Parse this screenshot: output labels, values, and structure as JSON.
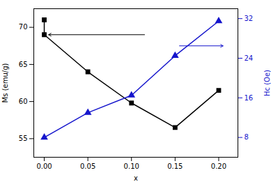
{
  "chart_data": {
    "type": "line",
    "xlabel": "x",
    "ylabel": "Ms (emu/g)",
    "y2label": "Hc (Oe)",
    "xlim": [
      -0.012,
      0.222
    ],
    "xticks": [
      {
        "value": 0.0,
        "label": "0.00"
      },
      0.05,
      {
        "value": 0.1,
        "label": "0.10"
      },
      0.15,
      {
        "value": 0.2,
        "label": "0.20"
      }
    ],
    "ylim": [
      52.5,
      72.5
    ],
    "yticks": [
      55,
      60,
      65,
      70
    ],
    "y2lim": [
      4.0,
      34.0
    ],
    "y2ticks": [
      8,
      16,
      24,
      32
    ],
    "y2color": "#1515cc",
    "series": [
      {
        "name": "Ms (emu/g)",
        "axis": "y",
        "color": "#000000",
        "marker": "square",
        "x": [
          0.0,
          0.0,
          0.05,
          0.1,
          0.15,
          0.2
        ],
        "values": [
          71.0,
          69.0,
          64.0,
          59.8,
          56.5,
          61.5
        ]
      },
      {
        "name": "Hc (Oe)",
        "axis": "y2",
        "color": "#1515cc",
        "marker": "triangle",
        "x": [
          0.0,
          0.05,
          0.1,
          0.15,
          0.2
        ],
        "values": [
          8.0,
          13.0,
          16.5,
          24.5,
          31.5
        ]
      }
    ],
    "arrows": [
      {
        "axis": "y",
        "x_start": 0.115,
        "x_end": 0.005,
        "y": 69.0,
        "color": "#000000"
      },
      {
        "axis": "y2",
        "x_start": 0.155,
        "x_end": 0.205,
        "y": 26.5,
        "color": "#1515cc"
      }
    ]
  }
}
